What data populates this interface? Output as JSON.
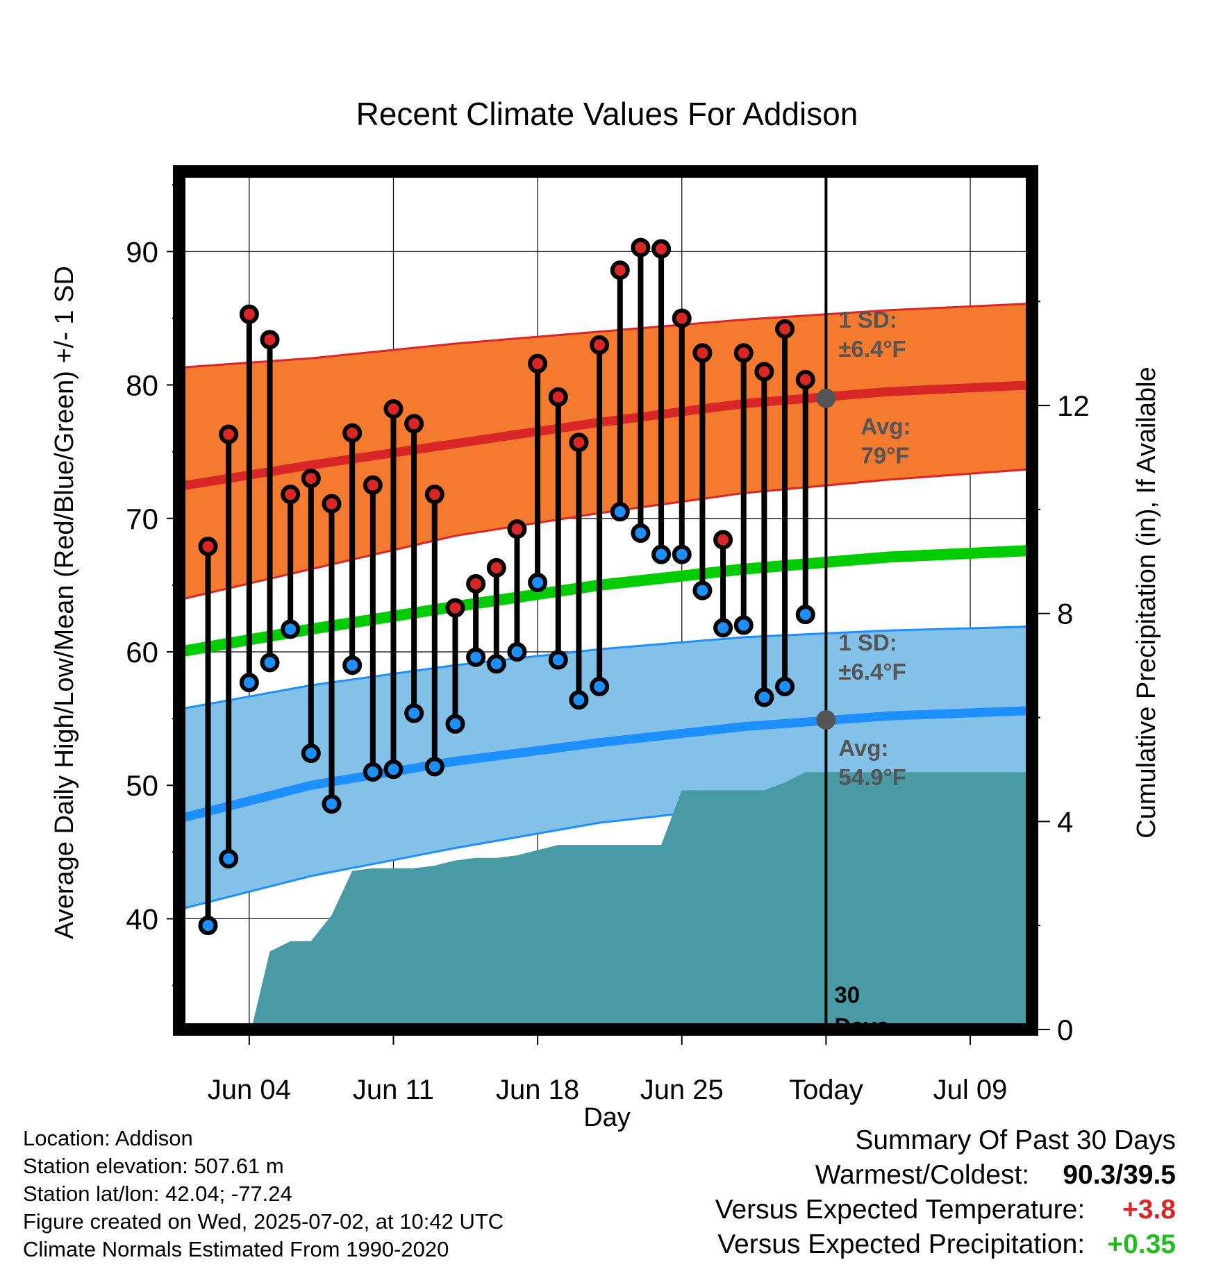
{
  "chart_data": {
    "type": "line",
    "title": "Recent Climate Values For Addison",
    "xlabel": "Day",
    "ylabel_left": "Average Daily High/Low/Mean (Red/Blue/Green) +/- 1 SD",
    "ylabel_right": "Cumulative Precipitation (in), If Available",
    "x_ticks": [
      {
        "day": 4,
        "label": "Jun 04"
      },
      {
        "day": 11,
        "label": "Jun 11"
      },
      {
        "day": 18,
        "label": "Jun 18"
      },
      {
        "day": 25,
        "label": "Jun 25"
      },
      {
        "day": 32,
        "label": "Today"
      },
      {
        "day": 39,
        "label": "Jul 09"
      }
    ],
    "xlim_days": [
      0.6,
      42
    ],
    "ylim_temp": [
      31.7,
      96
    ],
    "y_ticks_temp": [
      40,
      50,
      60,
      70,
      80,
      90
    ],
    "ylim_precip": [
      0,
      16.5
    ],
    "y_ticks_precip": [
      0,
      4,
      8,
      12
    ],
    "observed_days": [
      2,
      3,
      4,
      5,
      6,
      7,
      8,
      9,
      10,
      11,
      12,
      13,
      14,
      15,
      16,
      17,
      18,
      19,
      20,
      21,
      22,
      23,
      24,
      25,
      26,
      27,
      28,
      29,
      30,
      31
    ],
    "observed_high": [
      67.9,
      76.3,
      85.3,
      83.4,
      71.8,
      73.0,
      71.1,
      76.4,
      72.5,
      78.2,
      77.1,
      71.8,
      63.3,
      65.1,
      66.3,
      69.2,
      81.6,
      79.1,
      75.7,
      83.0,
      88.6,
      90.3,
      90.2,
      85.0,
      82.4,
      68.4,
      82.4,
      81.0,
      84.2,
      80.4
    ],
    "observed_low": [
      39.5,
      44.5,
      57.7,
      59.2,
      61.7,
      52.4,
      48.6,
      59.0,
      51.0,
      51.2,
      55.4,
      51.4,
      54.6,
      59.6,
      59.1,
      60.0,
      65.2,
      59.4,
      56.4,
      57.4,
      70.5,
      68.9,
      67.3,
      67.3,
      64.6,
      61.8,
      62.0,
      56.6,
      57.4,
      62.8
    ],
    "normal_days": [
      0.6,
      7,
      14,
      21,
      28,
      35,
      42
    ],
    "normal_high": [
      72.4,
      74.0,
      75.6,
      77.2,
      78.6,
      79.5,
      80.0
    ],
    "normal_high_upper": [
      81.3,
      82.0,
      83.1,
      84.0,
      84.9,
      85.6,
      86.1
    ],
    "normal_high_lower": [
      63.9,
      66.2,
      68.7,
      70.4,
      71.9,
      72.9,
      73.7
    ],
    "normal_mean": [
      60.0,
      61.7,
      63.4,
      65.0,
      66.2,
      67.1,
      67.6
    ],
    "normal_low": [
      47.5,
      50.0,
      51.8,
      53.2,
      54.4,
      55.2,
      55.6
    ],
    "normal_low_upper": [
      55.7,
      57.5,
      59.0,
      60.2,
      61.1,
      61.6,
      61.9
    ],
    "normal_low_lower": [
      40.7,
      43.2,
      45.3,
      47.2,
      48.4,
      49.2,
      49.7
    ],
    "precip_cumulative": [
      {
        "day": 4.1,
        "value": 0.0
      },
      {
        "day": 5.0,
        "value": 1.5
      },
      {
        "day": 6.0,
        "value": 1.7
      },
      {
        "day": 7.0,
        "value": 1.7
      },
      {
        "day": 8.0,
        "value": 2.2
      },
      {
        "day": 9.0,
        "value": 3.05
      },
      {
        "day": 10.0,
        "value": 3.1
      },
      {
        "day": 11.0,
        "value": 3.1
      },
      {
        "day": 12.0,
        "value": 3.1
      },
      {
        "day": 13.0,
        "value": 3.15
      },
      {
        "day": 14.0,
        "value": 3.25
      },
      {
        "day": 15.0,
        "value": 3.3
      },
      {
        "day": 16.0,
        "value": 3.3
      },
      {
        "day": 17.0,
        "value": 3.35
      },
      {
        "day": 18.0,
        "value": 3.45
      },
      {
        "day": 19.0,
        "value": 3.55
      },
      {
        "day": 20.0,
        "value": 3.55
      },
      {
        "day": 21.0,
        "value": 3.55
      },
      {
        "day": 22.0,
        "value": 3.55
      },
      {
        "day": 23.0,
        "value": 3.55
      },
      {
        "day": 24.0,
        "value": 3.55
      },
      {
        "day": 25.0,
        "value": 4.6
      },
      {
        "day": 26.0,
        "value": 4.6
      },
      {
        "day": 27.0,
        "value": 4.6
      },
      {
        "day": 28.0,
        "value": 4.6
      },
      {
        "day": 29.0,
        "value": 4.6
      },
      {
        "day": 30.0,
        "value": 4.75
      },
      {
        "day": 31.0,
        "value": 4.95
      },
      {
        "day": 42.0,
        "value": 4.95
      }
    ],
    "today_day": 32,
    "today_label": [
      "30",
      "Days"
    ],
    "high_normal_today": 79,
    "low_normal_today": 54.9,
    "annotation_high_sd": [
      "1 SD:",
      "±6.4°F"
    ],
    "annotation_high_avg": [
      "Avg:",
      "79°F"
    ],
    "annotation_low_sd": [
      "1 SD:",
      "±6.4°F"
    ],
    "annotation_low_avg": [
      "Avg:",
      "54.9°F"
    ],
    "colors": {
      "high_band": "#f47a30",
      "high_line": "#d92626",
      "low_band": "#84c1e8",
      "low_line": "#1e8fff",
      "mean_line": "#00cc00",
      "precip_fill": "#489ba5",
      "high_marker": "#d92626",
      "low_marker": "#1e8fff",
      "annotation": "#555555",
      "positive_temp": "#d92626",
      "positive_precip": "#22bb22"
    }
  },
  "info": {
    "location": "Location: Addison",
    "elevation": "Station elevation: 507.61 m",
    "latlon": "Station lat/lon: 42.04; -77.24",
    "created": "Figure created on Wed, 2025-07-02, at 10:42 UTC",
    "normals": "Climate Normals Estimated From 1990-2020"
  },
  "summary": {
    "title": "Summary Of Past 30 Days",
    "warmest_coldest_label": "Warmest/Coldest:",
    "warmest_coldest_value": "90.3/39.5",
    "temp_label": "Versus Expected Temperature:",
    "temp_value": "+3.8",
    "precip_label": "Versus Expected Precipitation:",
    "precip_value": "+0.35"
  }
}
